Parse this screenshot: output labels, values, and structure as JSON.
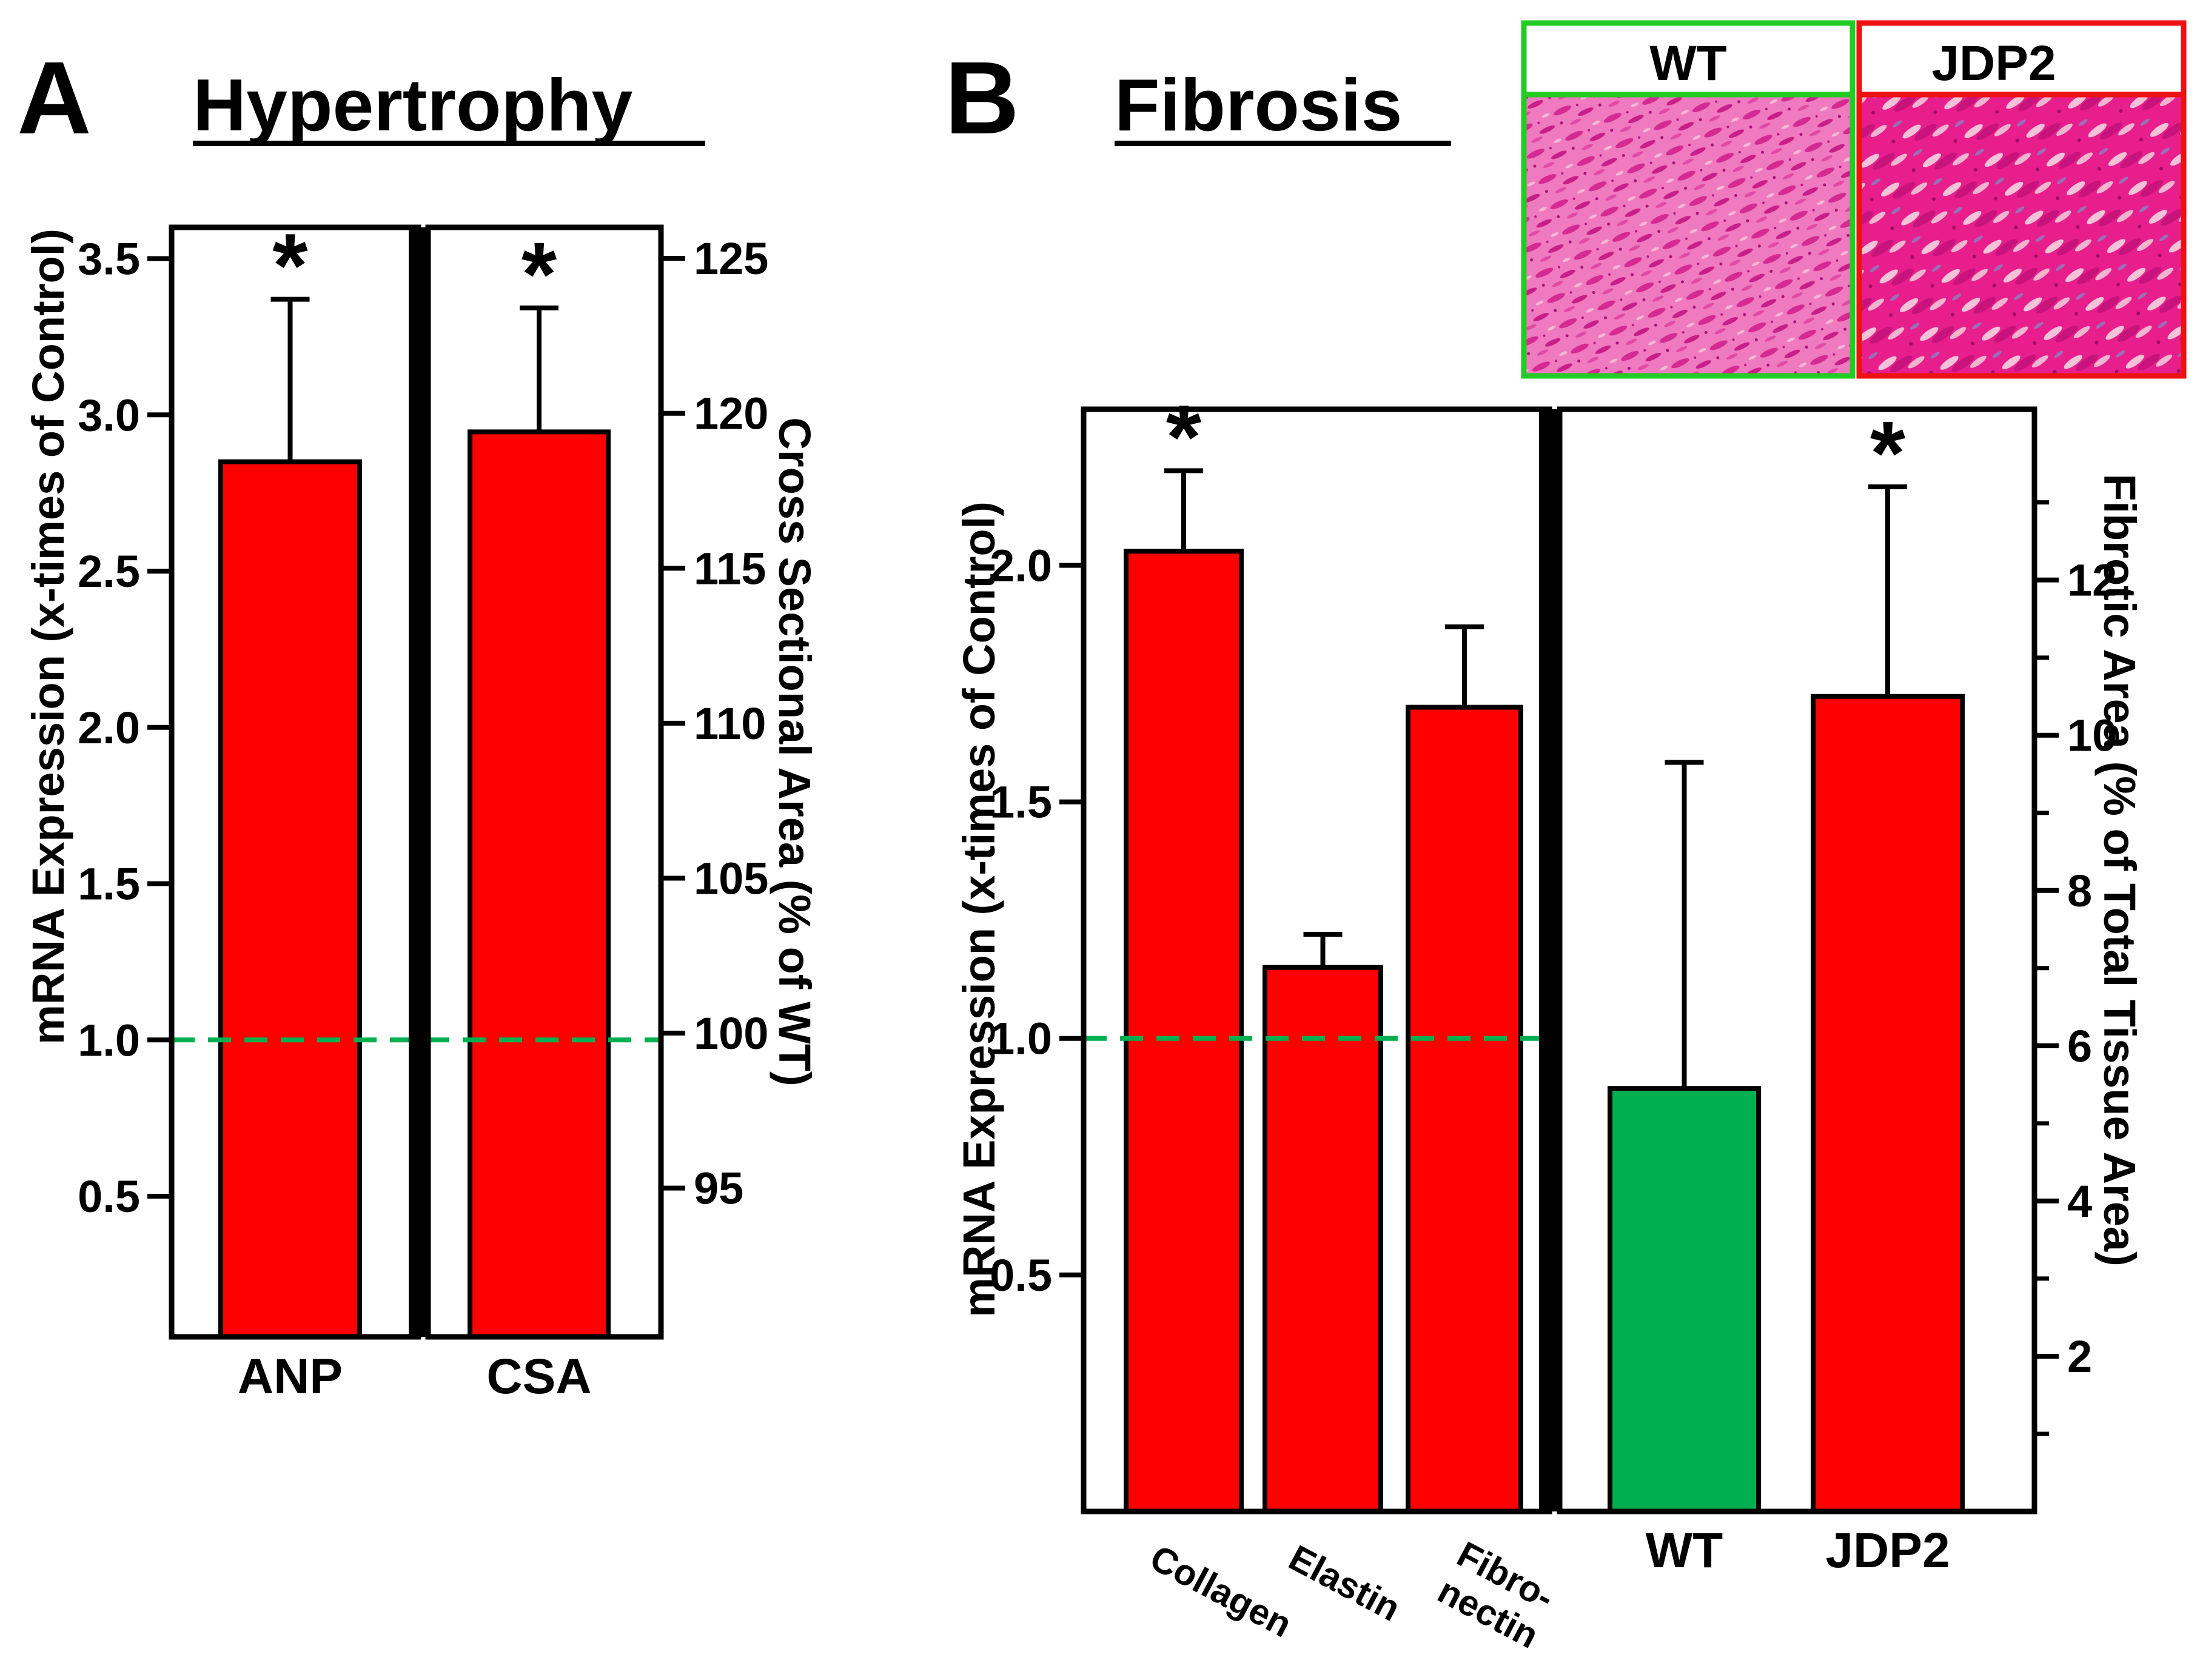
{
  "colors": {
    "red_bar": "#FF0000",
    "green_bar": "#00B050",
    "dashed_line": "#00B050",
    "wt_frame": "#22CC22",
    "jdp2_frame": "#EE1111",
    "tissue_base": "#E8409E"
  },
  "panel_a": {
    "letter": "A",
    "title": "Hypertrophy"
  },
  "panel_b": {
    "letter": "B",
    "title": "Fibrosis",
    "micrographs": [
      {
        "label": "WT",
        "frame_color": "#22CC22"
      },
      {
        "label": "JDP2",
        "frame_color": "#EE1111"
      }
    ]
  },
  "chart_data": [
    {
      "id": "hypertrophy",
      "type": "bar",
      "title": "Hypertrophy",
      "ylabel_left": "mRNA Expression (x-times of Control)",
      "ylabel_right": "Cross Sectional Area (% of WT)",
      "left_axis": {
        "range": [
          0.05,
          3.6
        ],
        "ticks": [
          0.5,
          1.0,
          1.5,
          2.0,
          2.5,
          3.0,
          3.5
        ],
        "tick_labels": [
          "0.5",
          "1.0",
          "1.5",
          "2.0",
          "2.5",
          "3.0",
          "3.5"
        ]
      },
      "right_axis": {
        "range": [
          90.2,
          126
        ],
        "ticks": [
          95,
          100,
          105,
          110,
          115,
          120,
          125
        ],
        "tick_labels": [
          "95",
          "100",
          "105",
          "110",
          "115",
          "120",
          "125"
        ]
      },
      "baseline": {
        "axis": "left",
        "value": 1.0,
        "style": "dashed"
      },
      "bars": [
        {
          "category": "ANP",
          "axis": "left",
          "value": 2.85,
          "error": 0.52,
          "significant": true,
          "color": "#FF0000"
        },
        {
          "category": "CSA",
          "axis": "right",
          "value": 119.4,
          "error": 4.0,
          "significant": true,
          "color": "#FF0000"
        }
      ],
      "significance_marker": "*"
    },
    {
      "id": "fibrosis",
      "type": "bar",
      "title": "Fibrosis",
      "ylabel_left": "mRNA Expression (x-times of Control)",
      "ylabel_right": "Fibrotic Area (% of Total Tissue Area)",
      "left_axis": {
        "range": [
          0.0,
          2.33
        ],
        "ticks": [
          0.5,
          1.0,
          1.5,
          2.0
        ],
        "tick_labels": [
          "0.5",
          "1.0",
          "1.5",
          "2.0"
        ]
      },
      "right_axis": {
        "range": [
          0.0,
          14.2
        ],
        "ticks": [
          2,
          4,
          6,
          8,
          10,
          12
        ],
        "tick_labels": [
          "2",
          "4",
          "6",
          "8",
          "10",
          "12"
        ],
        "minor_ticks": [
          1,
          3,
          5,
          7,
          9,
          11,
          13
        ]
      },
      "baseline": {
        "axis": "left",
        "value": 1.0,
        "style": "dashed"
      },
      "bars": [
        {
          "category": "Collagen",
          "axis": "left",
          "value": 2.03,
          "error": 0.17,
          "significant": true,
          "color": "#FF0000"
        },
        {
          "category": "Elastin",
          "axis": "left",
          "value": 1.15,
          "error": 0.07,
          "significant": false,
          "color": "#FF0000"
        },
        {
          "category": "Fibro-nectin",
          "category_lines": [
            "Fibro-",
            "nectin"
          ],
          "axis": "left",
          "value": 1.7,
          "error": 0.17,
          "significant": false,
          "color": "#FF0000"
        },
        {
          "category": "WT",
          "axis": "right",
          "value": 5.45,
          "error": 4.2,
          "significant": false,
          "color": "#00B050"
        },
        {
          "category": "JDP2",
          "axis": "right",
          "value": 10.5,
          "error": 2.7,
          "significant": true,
          "color": "#FF0000"
        }
      ],
      "significance_marker": "*"
    }
  ]
}
